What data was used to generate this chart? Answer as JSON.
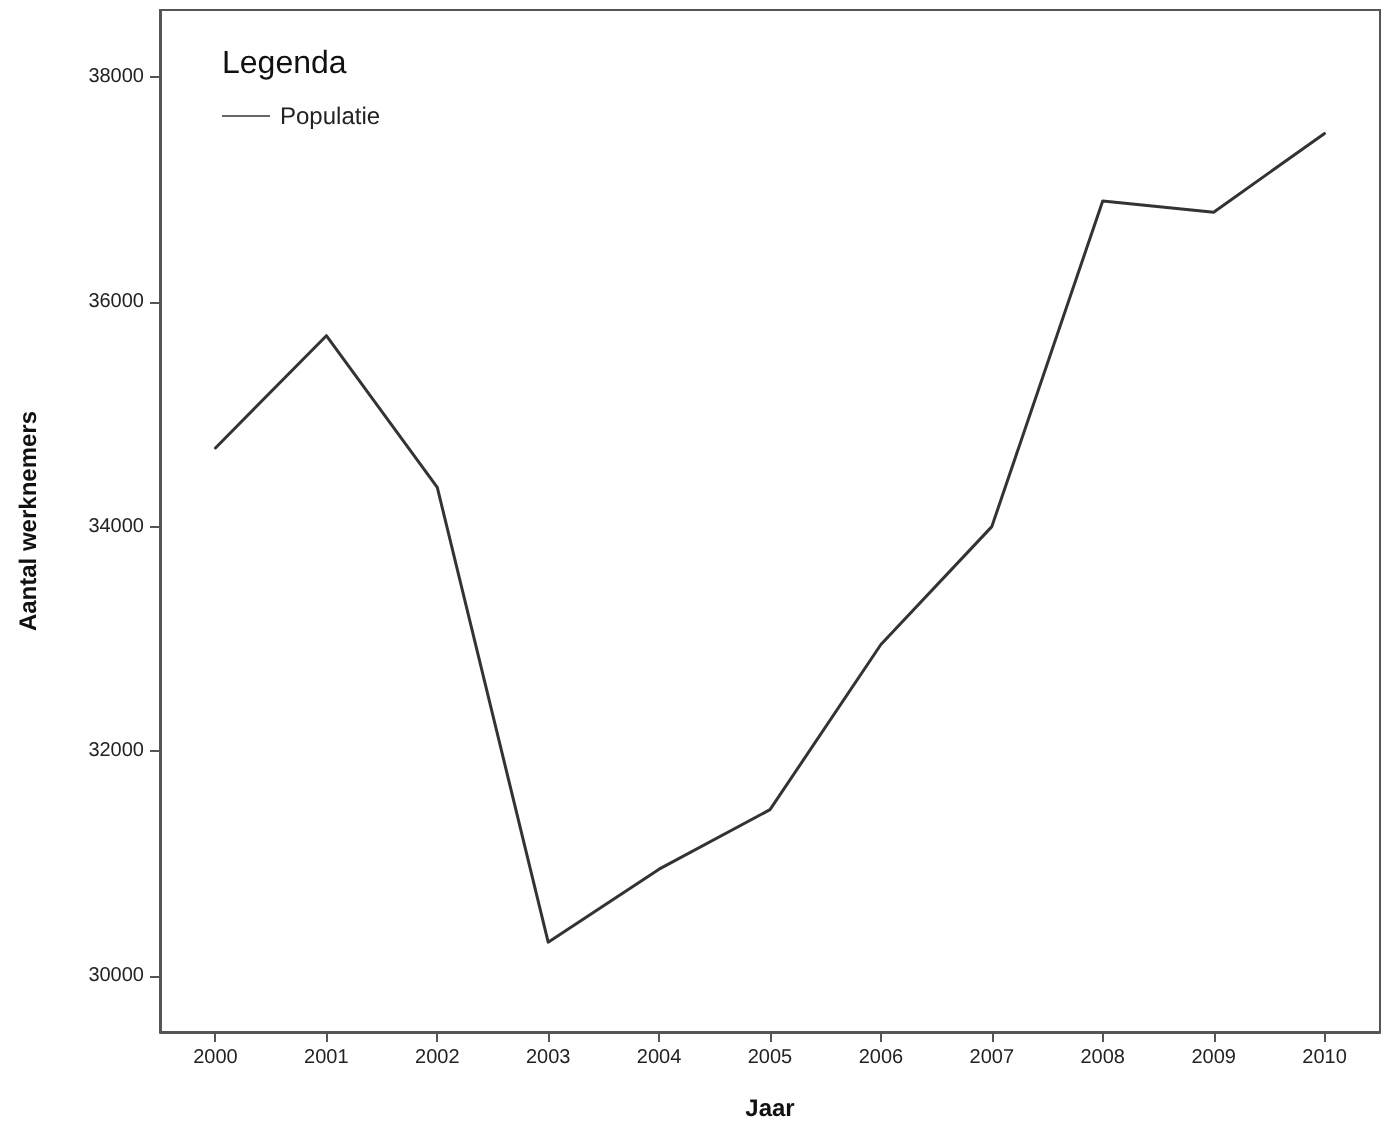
{
  "chart_data": {
    "type": "line",
    "xlabel": "Jaar",
    "ylabel": "Aantal werknemers",
    "legend_title": "Legenda",
    "legend": "top left",
    "grid": false,
    "marker": "none",
    "line_style": "solid",
    "categories": [
      "2000",
      "2001",
      "2002",
      "2003",
      "2004",
      "2005",
      "2006",
      "2007",
      "2008",
      "2009",
      "2010"
    ],
    "series": [
      {
        "name": "Populatie",
        "color": "#333333",
        "values": [
          34700,
          35700,
          34350,
          30300,
          30950,
          31480,
          32950,
          34000,
          36900,
          36800,
          37500
        ]
      }
    ],
    "ylim": [
      29500,
      38600
    ],
    "yticks": [
      30000,
      32000,
      34000,
      36000,
      38000
    ]
  }
}
